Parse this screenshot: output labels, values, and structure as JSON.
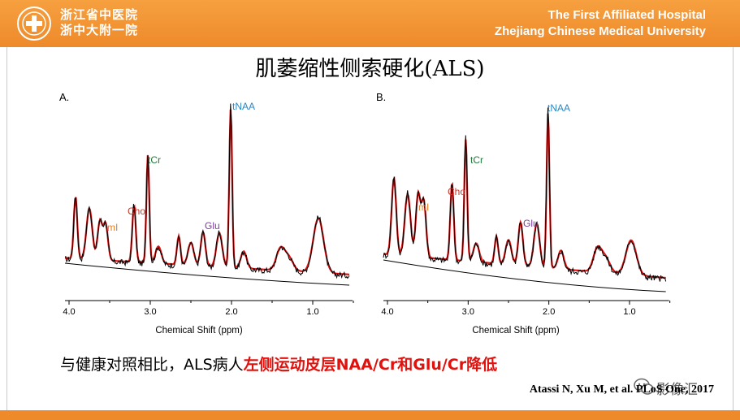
{
  "header": {
    "hospital_cn_line1": "浙江省中医院",
    "hospital_cn_line2": "浙中大附一院",
    "hospital_en_line1": "The First Affiliated Hospital",
    "hospital_en_line2": "Zhejiang Chinese Medical University",
    "accent_color": "#ee8a2a"
  },
  "slide": {
    "title": "肌萎缩性侧索硬化(ALS)",
    "caption_normal": "与健康对照相比，ALS病人",
    "caption_highlight": "左侧运动皮层NAA/Cr和Glu/Cr降低",
    "highlight_color": "#e0120e",
    "citation": "Atassi N, Xu M, et al. PLoS One, 2017",
    "watermark_text": "影像汇"
  },
  "chart_data": [
    {
      "type": "line",
      "panel": "A.",
      "xlabel": "Chemical Shift (ppm)",
      "x_ticks": [
        "4.0",
        "3.0",
        "2.0",
        "1.0"
      ],
      "xlim": [
        4.0,
        0.5
      ],
      "x_reversed": true,
      "annotations": [
        {
          "label": "tNAA",
          "ppm": 2.01,
          "color": "#2e86c1"
        },
        {
          "label": "tCr",
          "ppm": 3.03,
          "color": "#1f7a3a"
        },
        {
          "label": "Cho",
          "ppm": 3.2,
          "color": "#c0392b"
        },
        {
          "label": "mI",
          "ppm": 3.56,
          "color": "#e67e22"
        },
        {
          "label": "Glu",
          "ppm": 2.35,
          "color": "#7d3c98"
        }
      ],
      "series": [
        {
          "color": "#000000"
        },
        {
          "color": "#e01010"
        }
      ]
    },
    {
      "type": "line",
      "panel": "B.",
      "xlabel": "Chemical Shift (ppm)",
      "x_ticks": [
        "4.0",
        "3.0",
        "2.0",
        "1.0"
      ],
      "xlim": [
        4.0,
        0.5
      ],
      "x_reversed": true,
      "annotations": [
        {
          "label": "tNAA",
          "ppm": 2.01,
          "color": "#2e86c1"
        },
        {
          "label": "tCr",
          "ppm": 3.03,
          "color": "#1f7a3a"
        },
        {
          "label": "Cho",
          "ppm": 3.2,
          "color": "#c0392b"
        },
        {
          "label": "mI",
          "ppm": 3.56,
          "color": "#e67e22"
        },
        {
          "label": "Glu",
          "ppm": 2.35,
          "color": "#7d3c98"
        }
      ],
      "series": [
        {
          "color": "#000000"
        },
        {
          "color": "#e01010"
        }
      ]
    }
  ]
}
